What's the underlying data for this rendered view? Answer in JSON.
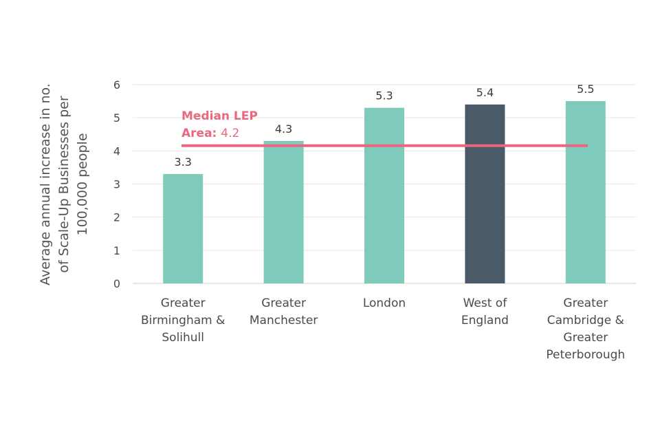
{
  "chart_data": {
    "type": "bar",
    "title": "",
    "ylabel_lines": [
      "Average annual increase in no.",
      "of Scale-Up Businesses per",
      "100,000 people"
    ],
    "xlabel": "",
    "ylim": [
      0,
      6
    ],
    "yticks": [
      0,
      1,
      2,
      3,
      4,
      5,
      6
    ],
    "categories": [
      {
        "lines": [
          "Greater",
          "Birmingham &",
          "Solihull"
        ]
      },
      {
        "lines": [
          "Greater",
          "Manchester"
        ]
      },
      {
        "lines": [
          "London"
        ]
      },
      {
        "lines": [
          "West of",
          "England"
        ]
      },
      {
        "lines": [
          "Greater",
          "Cambridge &",
          "Greater",
          "Peterborough"
        ]
      }
    ],
    "values": [
      3.3,
      4.3,
      5.3,
      5.4,
      5.5
    ],
    "value_labels": [
      "3.3",
      "4.3",
      "5.3",
      "5.4",
      "5.5"
    ],
    "highlight_index": 3,
    "colors": {
      "bar": "#7ecbbb",
      "highlight": "#4a5a68",
      "median": "#e8687f",
      "grid": "#e6e6e6",
      "axis": "#d0d0d0"
    },
    "grid": true,
    "median": {
      "value": 4.2,
      "label_line1": "Median LEP",
      "label_prefix": "Area: ",
      "label_value": "4.2"
    }
  }
}
